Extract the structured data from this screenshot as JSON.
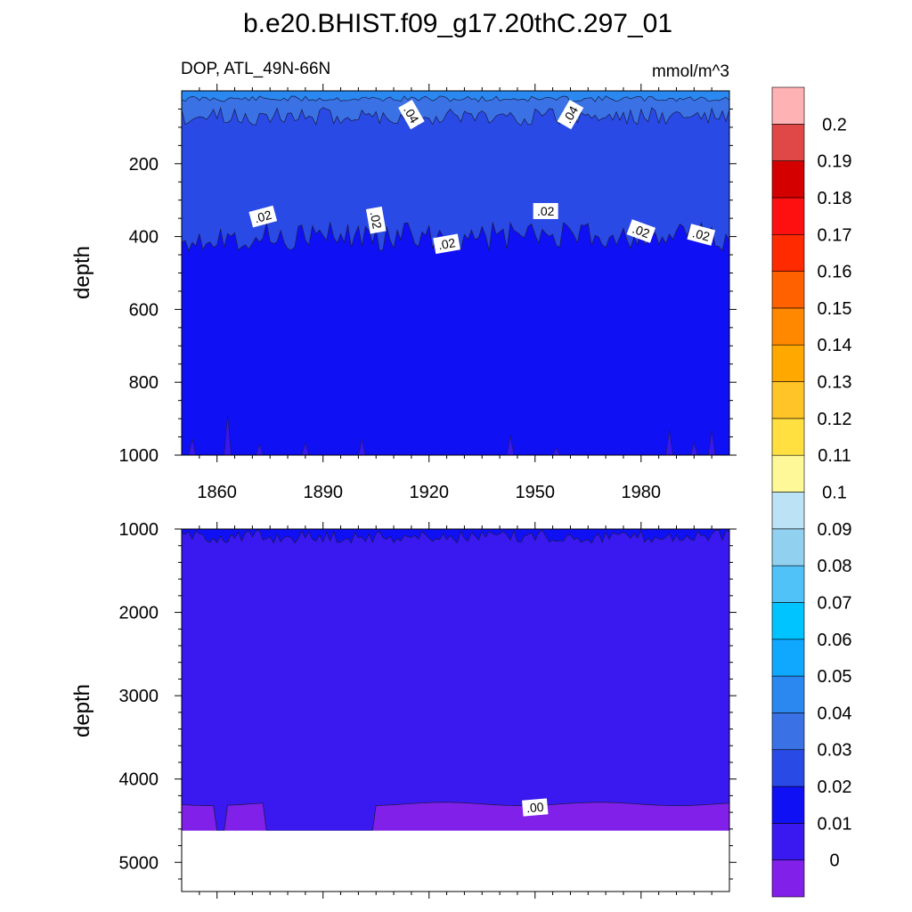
{
  "chart_data": {
    "type": "contour",
    "title": "b.e20.BHIST.f09_g17.20thC.297_01",
    "variable_label": "DOP, ATL_49N-66N",
    "units": "mmol/m^3",
    "xlabel": "",
    "ylabel": "depth",
    "x_ticks": [
      1860,
      1890,
      1920,
      1950,
      1980
    ],
    "xlim": [
      1850,
      2005
    ],
    "top_panel": {
      "ylim": [
        0,
        1000
      ],
      "y_ticks": [
        200,
        400,
        600,
        800,
        1000
      ],
      "contour_labels": [
        {
          "text": ".04",
          "year": 1915,
          "depth": 65,
          "angle": 60
        },
        {
          "text": ".04",
          "year": 1960,
          "depth": 65,
          "angle": -60
        },
        {
          "text": ".02",
          "year": 1873,
          "depth": 345,
          "angle": -15
        },
        {
          "text": ".02",
          "year": 1905,
          "depth": 355,
          "angle": 80
        },
        {
          "text": ".02",
          "year": 1925,
          "depth": 420,
          "angle": -10
        },
        {
          "text": ".02",
          "year": 1953,
          "depth": 330,
          "angle": 0
        },
        {
          "text": ".02",
          "year": 1980,
          "depth": 385,
          "angle": 20
        },
        {
          "text": ".02",
          "year": 1997,
          "depth": 395,
          "angle": 15
        }
      ]
    },
    "bottom_panel": {
      "ylim": [
        1000,
        5350
      ],
      "y_ticks": [
        1000,
        2000,
        3000,
        4000,
        5000
      ],
      "bottom_depth": 4620,
      "contour_labels": [
        {
          "text": ".00",
          "year": 1950,
          "depth": 4340,
          "angle": -5
        }
      ]
    },
    "colorbar": {
      "labels": [
        "0",
        "0.01",
        "0.02",
        "0.03",
        "0.04",
        "0.05",
        "0.06",
        "0.07",
        "0.08",
        "0.09",
        "0.1",
        "0.11",
        "0.12",
        "0.13",
        "0.14",
        "0.15",
        "0.16",
        "0.17",
        "0.18",
        "0.19",
        "0.2"
      ],
      "colors": [
        "#8020e8",
        "#3a18f0",
        "#1010f5",
        "#2a4ae6",
        "#3a72e6",
        "#2a88f0",
        "#10a8ff",
        "#00c4ff",
        "#50c2f8",
        "#92d0f0",
        "#bce2f6",
        "#fff898",
        "#ffe040",
        "#ffc428",
        "#ffa800",
        "#ff8800",
        "#ff6000",
        "#ff2a00",
        "#ff1010",
        "#d40000",
        "#e04848",
        "#ffb2b4"
      ]
    },
    "grid": false
  }
}
